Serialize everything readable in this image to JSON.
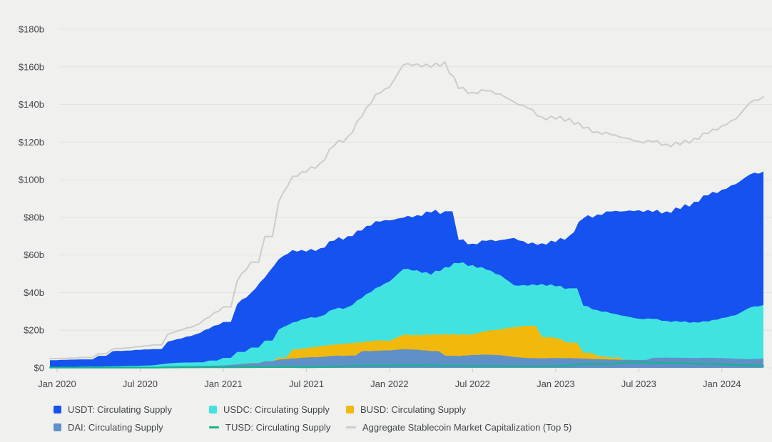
{
  "chart_data": {
    "type": "area",
    "title": "",
    "ylabel": "",
    "xlabel": "",
    "unit": "$ billions",
    "grid": "horizontal",
    "legend_position": "bottom",
    "ylim": [
      0,
      180
    ],
    "y_ticks": [
      "$0",
      "$20b",
      "$40b",
      "$60b",
      "$80b",
      "$100b",
      "$120b",
      "$140b",
      "$160b",
      "$180b"
    ],
    "x_ticks": [
      "Jan 2020",
      "Jul 2020",
      "Jan 2021",
      "Jul 2021",
      "Jan 2022",
      "Jul 2022",
      "Jan 2023",
      "Jul 2023",
      "Jan 2024"
    ],
    "x_tick_month_indices": [
      0,
      6,
      12,
      18,
      24,
      30,
      36,
      42,
      48
    ],
    "months": [
      "Jan 2020",
      "Feb 2020",
      "Mar 2020",
      "Apr 2020",
      "May 2020",
      "Jun 2020",
      "Jul 2020",
      "Aug 2020",
      "Sep 2020",
      "Oct 2020",
      "Nov 2020",
      "Dec 2020",
      "Jan 2021",
      "Feb 2021",
      "Mar 2021",
      "Apr 2021",
      "May 2021",
      "Jun 2021",
      "Jul 2021",
      "Aug 2021",
      "Sep 2021",
      "Oct 2021",
      "Nov 2021",
      "Dec 2021",
      "Jan 2022",
      "Feb 2022",
      "Mar 2022",
      "Apr 2022",
      "May 2022",
      "Jun 2022",
      "Jul 2022",
      "Aug 2022",
      "Sep 2022",
      "Oct 2022",
      "Nov 2022",
      "Dec 2022",
      "Jan 2023",
      "Feb 2023",
      "Mar 2023",
      "Apr 2023",
      "May 2023",
      "Jun 2023",
      "Jul 2023",
      "Aug 2023",
      "Sep 2023",
      "Oct 2023",
      "Nov 2023",
      "Dec 2023",
      "Jan 2024",
      "Feb 2024",
      "Mar 2024",
      "Apr 2024"
    ],
    "series": [
      {
        "name": "USDT: Circulating Supply",
        "color": "#1652f0",
        "render": "area",
        "values": [
          4.1,
          4.4,
          4.5,
          6.4,
          8.8,
          9.2,
          9.6,
          10.0,
          14.0,
          15.7,
          17.8,
          20.9,
          24.4,
          33.8,
          39.9,
          48.0,
          57.7,
          62.6,
          61.8,
          63.6,
          67.6,
          70.0,
          73.0,
          78.0,
          78.4,
          79.8,
          81.2,
          82.6,
          83.2,
          67.9,
          66.0,
          67.5,
          67.9,
          69.1,
          65.9,
          66.2,
          66.9,
          70.3,
          79.5,
          81.5,
          83.1,
          83.3,
          83.8,
          82.9,
          83.2,
          84.4,
          88.3,
          91.7,
          94.7,
          97.6,
          102.7,
          104.4
        ]
      },
      {
        "name": "USDC: Circulating Supply",
        "color": "#41e3e0",
        "render": "area",
        "values": [
          0.5,
          0.5,
          0.7,
          0.7,
          0.8,
          1.0,
          1.1,
          1.4,
          2.4,
          2.8,
          2.9,
          3.9,
          5.3,
          8.5,
          10.8,
          14.5,
          20.4,
          24.1,
          26.2,
          27.4,
          31.1,
          32.3,
          37.1,
          42.4,
          45.9,
          52.5,
          51.9,
          49.5,
          53.6,
          55.6,
          54.6,
          52.2,
          49.3,
          43.9,
          43.7,
          44.6,
          43.3,
          42.3,
          33.0,
          30.7,
          29.0,
          27.5,
          26.1,
          26.0,
          25.0,
          24.4,
          24.3,
          24.6,
          26.5,
          28.0,
          32.0,
          33.4
        ]
      },
      {
        "name": "BUSD: Circulating Supply",
        "color": "#f2b90d",
        "render": "area",
        "values": [
          0.02,
          0.05,
          0.1,
          0.15,
          0.15,
          0.15,
          0.2,
          0.25,
          0.4,
          0.5,
          0.6,
          0.8,
          1.1,
          1.7,
          2.6,
          3.4,
          5.5,
          9.7,
          10.4,
          11.6,
          12.3,
          13.1,
          13.5,
          14.6,
          14.4,
          17.5,
          17.5,
          17.5,
          18.0,
          17.5,
          17.9,
          19.6,
          20.5,
          21.7,
          22.4,
          16.6,
          15.9,
          13.4,
          8.0,
          6.5,
          5.5,
          4.3,
          3.3,
          3.1,
          2.6,
          2.0,
          1.7,
          1.0,
          0.3,
          0.1,
          0.1,
          0.1
        ]
      },
      {
        "name": "DAI: Circulating Supply",
        "color": "#6090c8",
        "render": "area",
        "values": [
          0.1,
          0.1,
          0.1,
          0.1,
          0.12,
          0.13,
          0.2,
          0.4,
          0.9,
          0.95,
          1.0,
          1.1,
          1.3,
          1.8,
          2.5,
          3.5,
          4.4,
          5.0,
          5.5,
          5.8,
          6.4,
          6.5,
          8.8,
          9.1,
          9.3,
          9.9,
          9.7,
          8.9,
          6.6,
          6.3,
          6.9,
          7.0,
          6.8,
          5.8,
          5.2,
          5.1,
          5.2,
          5.2,
          4.9,
          4.7,
          4.4,
          4.3,
          4.2,
          5.3,
          5.5,
          5.3,
          5.3,
          5.3,
          5.2,
          4.9,
          4.6,
          5.0
        ]
      },
      {
        "name": "TUSD: Circulating Supply",
        "color": "#16b58c",
        "render": "line",
        "values": [
          0.14,
          0.14,
          0.14,
          0.14,
          0.14,
          0.14,
          0.15,
          0.15,
          0.2,
          0.25,
          0.28,
          0.3,
          0.3,
          0.35,
          0.4,
          0.4,
          0.4,
          0.4,
          0.3,
          0.4,
          0.6,
          1.0,
          1.2,
          1.2,
          1.2,
          1.3,
          1.3,
          1.3,
          1.2,
          1.2,
          1.0,
          1.0,
          1.0,
          0.8,
          0.8,
          0.8,
          1.0,
          1.3,
          2.0,
          2.1,
          2.0,
          2.8,
          2.9,
          2.8,
          2.6,
          2.5,
          2.3,
          2.0,
          1.9,
          1.6,
          1.3,
          1.2
        ]
      },
      {
        "name": "Aggregate Stablecoin Market Capitalization (Top 5)",
        "color": "#c9cfca",
        "render": "line",
        "values": [
          4.9,
          5.2,
          5.5,
          7.5,
          10.0,
          10.6,
          11.3,
          12.2,
          17.9,
          20.2,
          22.6,
          27.0,
          32.4,
          46.2,
          56.2,
          69.8,
          88.4,
          101.8,
          104.2,
          108.8,
          118.0,
          122.9,
          133.6,
          145.3,
          149.2,
          161.0,
          161.6,
          159.8,
          162.6,
          148.5,
          146.4,
          147.3,
          145.5,
          141.3,
          138.0,
          133.3,
          132.3,
          132.5,
          127.4,
          125.5,
          124.0,
          122.2,
          120.3,
          120.1,
          118.9,
          118.6,
          121.9,
          124.6,
          128.6,
          132.2,
          140.7,
          144.1
        ]
      }
    ],
    "colors": {
      "background": "#f0f0ee",
      "gridline": "#e2e2df",
      "axis_tick": "#c9c9c6",
      "tick_text": "#42474b"
    }
  }
}
